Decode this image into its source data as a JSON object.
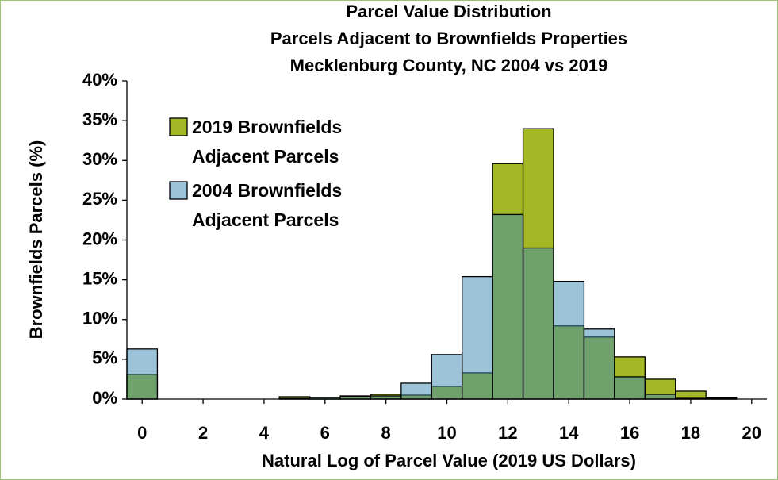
{
  "chart_data": {
    "type": "histogram",
    "title": [
      "Parcel Value Distribution",
      "Parcels Adjacent to Brownfields Properties",
      "Mecklenburg County, NC 2004 vs 2019"
    ],
    "x_label": "Natural Log of Parcel Value (2019 US Dollars)",
    "y_label": "Brownfields Parcels (%)",
    "bins": [
      -0.5,
      0.5,
      1.5,
      2.5,
      3.5,
      4.5,
      5.5,
      6.5,
      7.5,
      8.5,
      9.5,
      10.5,
      11.5,
      12.5,
      13.5,
      14.5,
      15.5,
      16.5,
      17.5,
      18.5,
      19.5
    ],
    "series": [
      {
        "name": "2019 Brownfields Adjacent Parcels",
        "color": "#a4b826",
        "opacity": 1,
        "values": [
          3.1,
          0,
          0,
          0,
          0,
          0.3,
          0.2,
          0.4,
          0.6,
          0.5,
          1.6,
          3.3,
          29.6,
          34.0,
          9.2,
          7.8,
          5.3,
          2.5,
          1.0,
          0.2
        ]
      },
      {
        "name": "2004 Brownfields Adjacent Parcels",
        "color": "#3b87b1",
        "opacity": 0.5,
        "values": [
          6.3,
          0,
          0,
          0,
          0,
          0.1,
          0.2,
          0.3,
          0.4,
          2.0,
          5.6,
          15.4,
          23.2,
          19.0,
          14.8,
          8.8,
          2.8,
          0.6,
          0.1,
          0.1
        ]
      }
    ],
    "xlim": [
      -0.5,
      20.5
    ],
    "xticks": [
      0,
      2,
      4,
      6,
      8,
      10,
      12,
      14,
      16,
      18,
      20
    ],
    "ylim": [
      0,
      40
    ],
    "yticks": [
      {
        "value": 0,
        "label": "0%"
      },
      {
        "value": 5,
        "label": "5%"
      },
      {
        "value": 10,
        "label": "10%"
      },
      {
        "value": 15,
        "label": "15%"
      },
      {
        "value": 20,
        "label": "20%"
      },
      {
        "value": 25,
        "label": "25%"
      },
      {
        "value": 30,
        "label": "30%"
      },
      {
        "value": 35,
        "label": "35%"
      },
      {
        "value": 40,
        "label": "40%"
      }
    ],
    "grid": false,
    "legend": "upper left"
  }
}
